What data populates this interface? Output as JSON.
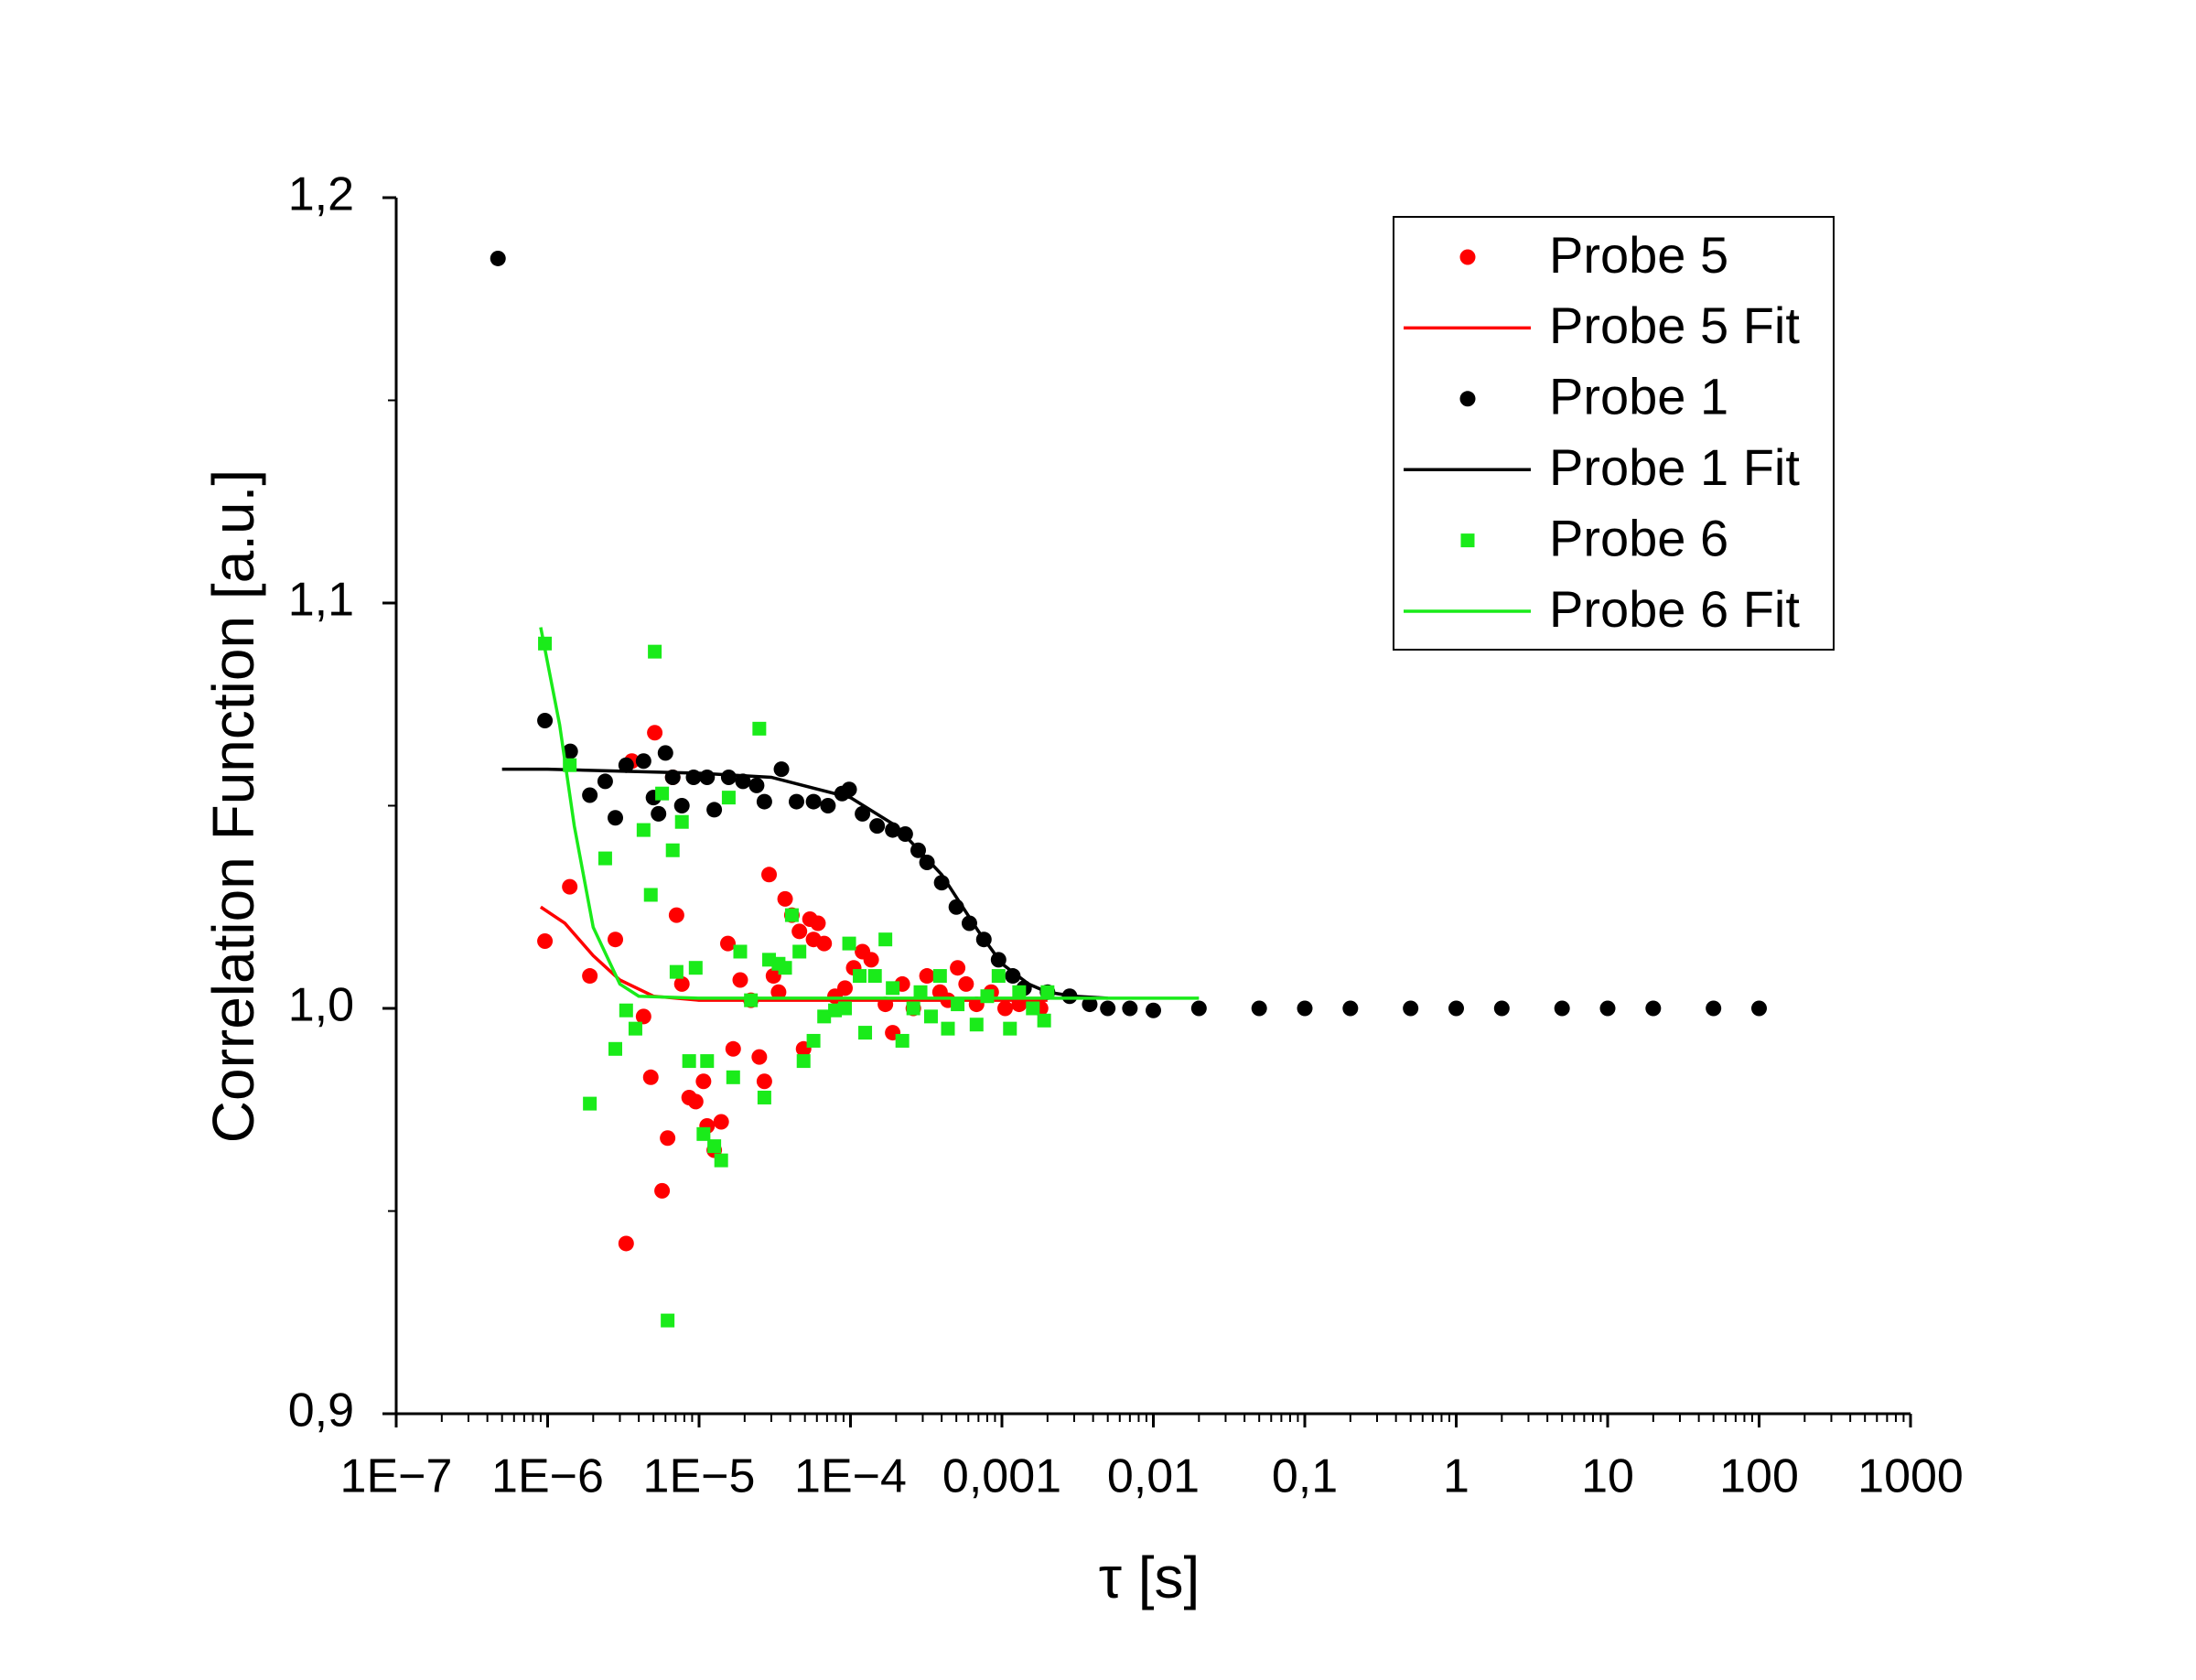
{
  "chart_data": {
    "type": "scatter",
    "x_label": "τ [s]",
    "y_label": "Correlation Function [a.u.]",
    "xscale": "log",
    "xlim": [
      1e-07,
      1000
    ],
    "ylim": [
      0.9,
      1.2
    ],
    "xticks": [
      {
        "value": 1e-07,
        "label": "1E−7"
      },
      {
        "value": 1e-06,
        "label": "1E−6"
      },
      {
        "value": 1e-05,
        "label": "1E−5"
      },
      {
        "value": 0.0001,
        "label": "1E−4"
      },
      {
        "value": 0.001,
        "label": "0,001"
      },
      {
        "value": 0.01,
        "label": "0,01"
      },
      {
        "value": 0.1,
        "label": "0,1"
      },
      1,
      10,
      100,
      1000
    ],
    "yticks": [
      {
        "value": 0.9,
        "label": "0,9"
      },
      {
        "value": 1.0,
        "label": "1,0"
      },
      {
        "value": 1.1,
        "label": "1,1"
      },
      {
        "value": 1.2,
        "label": "1,2"
      }
    ],
    "legend": "top-right",
    "series": [
      {
        "name": "Probe 5",
        "style": "markers",
        "marker": "circle",
        "color": "#ff0000",
        "x": [
          9.6e-07,
          1.4e-06,
          1.9e-06,
          2.8e-06,
          3.3e-06,
          3.6e-06,
          4.3e-06,
          4.8e-06,
          5.1e-06,
          5.7e-06,
          6.2e-06,
          6.7e-06,
          7.1e-06,
          7.7e-06,
          8.6e-06,
          9.5e-06,
          1.07e-05,
          1.13e-05,
          1.26e-05,
          1.4e-05,
          1.55e-05,
          1.68e-05,
          1.87e-05,
          2.2e-05,
          2.5e-05,
          2.7e-05,
          2.9e-05,
          3.1e-05,
          3.35e-05,
          3.7e-05,
          4.1e-05,
          4.6e-05,
          4.9e-05,
          5.4e-05,
          5.7e-05,
          6.1e-05,
          6.7e-05,
          7.9e-05,
          9.2e-05,
          0.000105,
          0.00012,
          0.000137,
          0.00017,
          0.00019,
          0.00022,
          0.00026,
          0.00032,
          0.00039,
          0.00044,
          0.00051,
          0.00058,
          0.00068,
          0.00085,
          0.00105,
          0.0013,
          0.0018
        ],
        "values": [
          1.0166,
          1.03,
          1.008,
          1.017,
          0.942,
          1.061,
          0.998,
          0.983,
          1.068,
          0.955,
          0.968,
          1.057,
          1.023,
          1.006,
          0.978,
          0.977,
          0.982,
          0.971,
          0.965,
          0.972,
          1.016,
          0.99,
          1.007,
          1.002,
          0.988,
          0.982,
          1.033,
          1.008,
          1.004,
          1.027,
          1.023,
          1.019,
          0.99,
          1.022,
          1.017,
          1.021,
          1.016,
          1.003,
          1.005,
          1.01,
          1.014,
          1.012,
          1.001,
          0.994,
          1.006,
          1.0,
          1.008,
          1.004,
          1.002,
          1.01,
          1.006,
          1.001,
          1.004,
          1.0,
          1.001,
          1.0
        ]
      },
      {
        "name": "Probe 5 Fit",
        "style": "line",
        "color": "#ff0000",
        "x": [
          9e-07,
          1.3e-06,
          2e-06,
          3e-06,
          5e-06,
          1e-05,
          0.0001,
          0.001,
          0.002
        ],
        "values": [
          1.025,
          1.021,
          1.013,
          1.007,
          1.003,
          1.002,
          1.002,
          1.002,
          1.002
        ]
      },
      {
        "name": "Probe 1",
        "style": "markers",
        "marker": "circle",
        "color": "#000000",
        "x": [
          4.7e-07,
          9.6e-07,
          1.41e-06,
          1.9e-06,
          2.4e-06,
          2.8e-06,
          3.3e-06,
          4.3e-06,
          5e-06,
          5.4e-06,
          6e-06,
          6.7e-06,
          7.7e-06,
          9.2e-06,
          1.13e-05,
          1.26e-05,
          1.57e-05,
          1.95e-05,
          2.4e-05,
          2.7e-05,
          3.5e-05,
          4.4e-05,
          5.7e-05,
          7.1e-05,
          8.8e-05,
          9.8e-05,
          0.00012,
          0.00015,
          0.00019,
          0.00023,
          0.00028,
          0.00032,
          0.0004,
          0.0005,
          0.00061,
          0.00076,
          0.00095,
          0.00118,
          0.0014,
          0.002,
          0.0028,
          0.0038,
          0.005,
          0.007,
          0.01,
          0.02,
          0.05,
          0.1,
          0.2,
          0.5,
          1,
          2,
          5,
          10,
          20,
          50,
          100
        ],
        "values": [
          1.185,
          1.071,
          1.0634,
          1.0526,
          1.056,
          1.047,
          1.06,
          1.061,
          1.052,
          1.048,
          1.063,
          1.057,
          1.05,
          1.057,
          1.057,
          1.049,
          1.057,
          1.056,
          1.055,
          1.051,
          1.059,
          1.051,
          1.051,
          1.05,
          1.053,
          1.054,
          1.048,
          1.045,
          1.044,
          1.043,
          1.039,
          1.036,
          1.031,
          1.025,
          1.021,
          1.017,
          1.012,
          1.008,
          1.005,
          1.004,
          1.003,
          1.001,
          1.0,
          1.0,
          0.9995,
          1.0,
          1.0,
          1.0,
          1.0,
          1.0,
          1.0,
          1.0,
          1.0,
          1.0,
          1.0,
          1.0,
          1.0
        ]
      },
      {
        "name": "Probe 1 Fit",
        "style": "line",
        "color": "#000000",
        "x": [
          5e-07,
          1e-06,
          1e-05,
          3e-05,
          0.0001,
          0.0002,
          0.0004,
          0.0007,
          0.001,
          0.0015,
          0.002,
          0.003,
          0.005
        ],
        "values": [
          1.059,
          1.059,
          1.058,
          1.057,
          1.052,
          1.045,
          1.033,
          1.019,
          1.011,
          1.006,
          1.004,
          1.003,
          1.0025
        ]
      },
      {
        "name": "Probe 6",
        "style": "markers",
        "marker": "square",
        "color": "#1aeb1a",
        "x": [
          9.6e-07,
          1.4e-06,
          1.9e-06,
          2.4e-06,
          2.8e-06,
          3.3e-06,
          3.8e-06,
          4.3e-06,
          4.8e-06,
          5.1e-06,
          5.7e-06,
          6.2e-06,
          6.7e-06,
          7.1e-06,
          7.7e-06,
          8.6e-06,
          9.5e-06,
          1.07e-05,
          1.13e-05,
          1.26e-05,
          1.4e-05,
          1.57e-05,
          1.68e-05,
          1.87e-05,
          2.2e-05,
          2.5e-05,
          2.7e-05,
          2.9e-05,
          3.35e-05,
          3.7e-05,
          4.1e-05,
          4.6e-05,
          4.9e-05,
          5.7e-05,
          6.7e-05,
          7.9e-05,
          9.2e-05,
          9.8e-05,
          0.000115,
          0.000125,
          0.000145,
          0.00017,
          0.00019,
          0.00022,
          0.00026,
          0.00029,
          0.00034,
          0.00039,
          0.00044,
          0.00051,
          0.00068,
          0.0008,
          0.00095,
          0.00113,
          0.0013,
          0.0016,
          0.0019,
          0.002
        ],
        "values": [
          1.09,
          1.06,
          0.9765,
          1.037,
          0.99,
          0.9995,
          0.995,
          1.044,
          1.028,
          1.088,
          1.053,
          0.923,
          1.039,
          1.009,
          1.046,
          0.987,
          1.01,
          0.969,
          0.987,
          0.966,
          0.9625,
          1.052,
          0.983,
          1.014,
          1.002,
          1.069,
          0.978,
          1.012,
          1.011,
          1.01,
          1.023,
          1.014,
          0.987,
          0.992,
          0.998,
          0.9995,
          1.0,
          1.016,
          1.008,
          0.994,
          1.008,
          1.017,
          1.005,
          0.992,
          1.0,
          1.004,
          0.998,
          1.008,
          0.995,
          1.001,
          0.996,
          1.003,
          1.008,
          0.995,
          1.004,
          1.0,
          0.997,
          1.004
        ]
      },
      {
        "name": "Probe 6 Fit",
        "style": "line",
        "color": "#1aeb1a",
        "x": [
          9e-07,
          1.2e-06,
          1.5e-06,
          2e-06,
          3e-06,
          4e-06,
          1e-05,
          0.001,
          0.02
        ],
        "values": [
          1.094,
          1.07,
          1.045,
          1.02,
          1.006,
          1.003,
          1.0025,
          1.0025,
          1.0025
        ]
      }
    ]
  }
}
